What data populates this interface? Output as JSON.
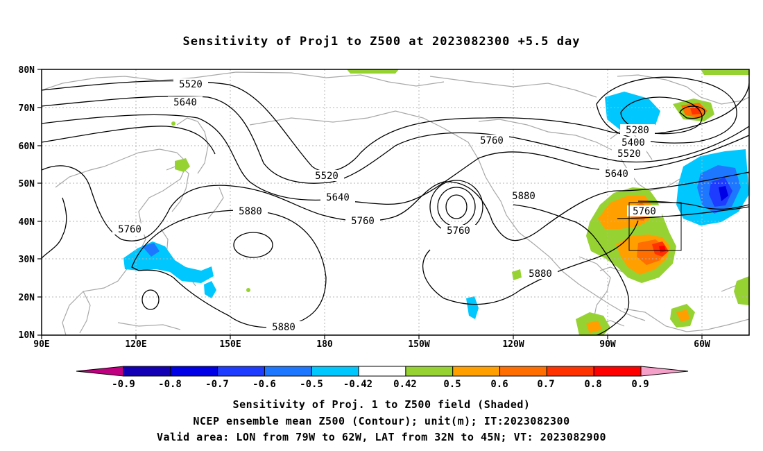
{
  "title": "Sensitivity of Proj1 to Z500 at 2023082300 +5.5 day",
  "lat_labels": [
    "80N",
    "70N",
    "60N",
    "50N",
    "40N",
    "30N",
    "20N",
    "10N"
  ],
  "lon_labels": [
    "90E",
    "120E",
    "150E",
    "180",
    "150W",
    "120W",
    "90W",
    "60W"
  ],
  "contour_labels": {
    "c5520a": "5520",
    "c5640a": "5640",
    "c5520b": "5520",
    "c5640b": "5640",
    "c5760a": "5760",
    "c5760b": "5760",
    "c5760c": "5760",
    "c5880a": "5880",
    "c5880b": "5880",
    "c5880c": "5880",
    "c5880d": "5880",
    "c5280": "5280",
    "c5400": "5400",
    "c5520c": "5520",
    "c5640c": "5640",
    "c5760d": "5760",
    "c5760e": "5760"
  },
  "colorbar": {
    "labels": [
      "-0.9",
      "-0.8",
      "-0.7",
      "-0.6",
      "-0.5",
      "-0.42",
      "0.42",
      "0.5",
      "0.6",
      "0.7",
      "0.8",
      "0.9"
    ],
    "colors": [
      "#c00080",
      "#1400b4",
      "#0000e6",
      "#1e3cff",
      "#1e78ff",
      "#00c8ff",
      "#ffffff",
      "#96d232",
      "#ffa000",
      "#ff6e00",
      "#ff3200",
      "#ff0000",
      "#f5a0c8"
    ]
  },
  "footer": {
    "line1": "Sensitivity of Proj. 1 to Z500 field (Shaded)",
    "line2": "NCEP ensemble mean Z500 (Contour); unit(m); IT:2023082300",
    "line3": "Valid area: LON from 79W to 62W, LAT from 32N to 45N; VT: 2023082900"
  },
  "valid_area": {
    "lon_min": -79,
    "lon_max": -62,
    "lat_min": 32,
    "lat_max": 45
  }
}
